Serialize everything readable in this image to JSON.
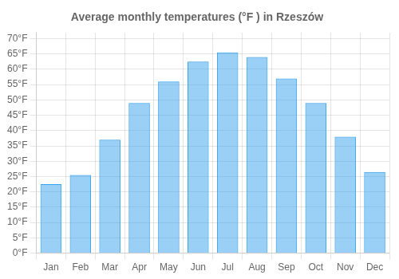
{
  "chart_data": {
    "type": "bar",
    "title": "Average monthly temperatures (°F ) in Rzeszów",
    "categories": [
      "Jan",
      "Feb",
      "Mar",
      "Apr",
      "May",
      "Jun",
      "Jul",
      "Aug",
      "Sep",
      "Oct",
      "Nov",
      "Dec"
    ],
    "values": [
      22.5,
      25.5,
      37,
      49,
      56,
      62.5,
      65.5,
      64,
      57,
      49,
      38,
      26.5
    ],
    "ylim": [
      0,
      72
    ],
    "yticks": [
      {
        "value": 0,
        "label": "0°F"
      },
      {
        "value": 5,
        "label": "5°F"
      },
      {
        "value": 10,
        "label": "10°F"
      },
      {
        "value": 15,
        "label": "15°F"
      },
      {
        "value": 20,
        "label": "20°F"
      },
      {
        "value": 25,
        "label": "25°F"
      },
      {
        "value": 30,
        "label": "30°F"
      },
      {
        "value": 35,
        "label": "35°F"
      },
      {
        "value": 40,
        "label": "40°F"
      },
      {
        "value": 45,
        "label": "45°F"
      },
      {
        "value": 50,
        "label": "50°F"
      },
      {
        "value": 55,
        "label": "55°F"
      },
      {
        "value": 60,
        "label": "60°F"
      },
      {
        "value": 65,
        "label": "65°F"
      },
      {
        "value": 70,
        "label": "70°F"
      }
    ],
    "grid": true
  }
}
